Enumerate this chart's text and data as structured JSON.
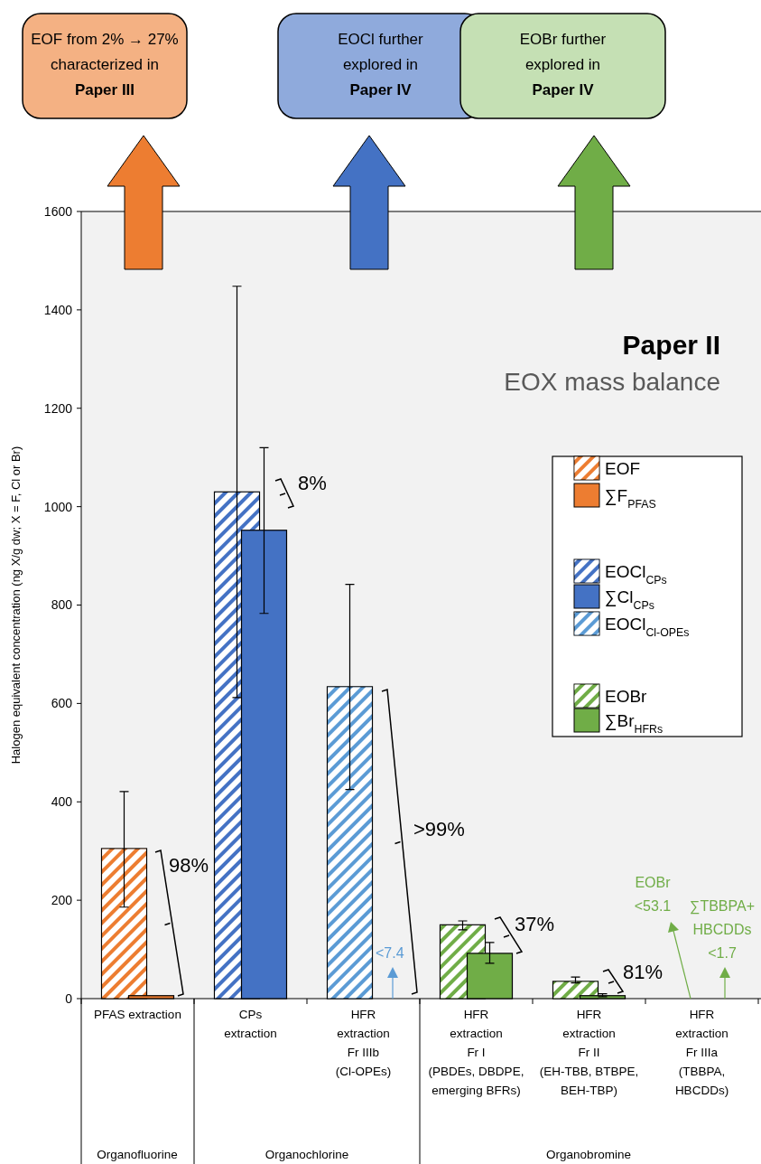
{
  "chart_data": {
    "type": "bar",
    "ylabel": "Halogen equivalent concentration (ng X/g dw; X = F, Cl or Br)",
    "categories": [
      "PFAS extraction",
      "CPs\nextraction",
      "HFR\nextraction\nFr IIIb\n(Cl-OPEs)",
      "HFR\nextraction\nFr I\n(PBDEs, DBDPE,\nemerging BFRs)",
      "HFR\nextraction\nFr II\n(EH-TBB, BTBPE,\nBEH-TBP)",
      "HFR\nextraction\nFr IIIa\n(TBBPA,\nHBCDDs)"
    ],
    "series": [
      {
        "name": "EOF",
        "color": "#ed7d31",
        "values": [
          305,
          null,
          null,
          null,
          null,
          null
        ],
        "errors": [
          [
            186,
            421
          ],
          null,
          null,
          null,
          null,
          null
        ]
      },
      {
        "name": "∑F$_{PFAS}$",
        "color": "#ed7d31",
        "values": [
          6,
          null,
          null,
          null,
          null,
          null
        ]
      },
      {
        "name": "EOCl$_{CPs}$",
        "color": "#4472c4",
        "values": [
          null,
          1030,
          null,
          null,
          null,
          null
        ],
        "errors": [
          null,
          [
            612,
            1448
          ],
          null,
          null,
          null,
          null
        ]
      },
      {
        "name": "∑Cl$_{CPs}$",
        "color": "#4472c4",
        "values": [
          null,
          952,
          null,
          null,
          null,
          null
        ],
        "errors": [
          null,
          [
            783,
            1120
          ],
          null,
          null,
          null,
          null
        ]
      },
      {
        "name": "EOCl$_{Cl-OPEs}$",
        "color": "#5b9bd5",
        "values": [
          null,
          null,
          634,
          null,
          null,
          null
        ],
        "errors": [
          null,
          null,
          [
            425,
            842
          ],
          null,
          null,
          null
        ]
      },
      {
        "name": "EOBr",
        "color": "#70ad47",
        "values": [
          null,
          null,
          null,
          150,
          35,
          null
        ],
        "errors": [
          null,
          null,
          null,
          [
            140,
            158
          ],
          [
            32,
            44
          ],
          null
        ]
      },
      {
        "name": "∑Br$_{HFRs}$",
        "color": "#70ad47",
        "values": [
          null,
          null,
          null,
          92,
          6,
          null
        ],
        "errors": [
          null,
          null,
          null,
          [
            72,
            114
          ],
          [
            4,
            10
          ],
          null
        ]
      }
    ],
    "ylim": [
      0,
      1600
    ],
    "yticks": [
      0,
      200,
      400,
      600,
      800,
      1000,
      1200,
      1400,
      1600
    ],
    "grid": false,
    "legend": "right",
    "annotations": [
      "EOF from 2% → 27%\ncharacterized in\nPaper III",
      "EOCl further\nexplored in\nPaper IV",
      "EOBr further\nexplored in\nPaper IV",
      "Paper II",
      "EOX mass balance",
      "98%",
      "8%",
      ">99%",
      "37%",
      "81%",
      "<7.4",
      "EOBr\n<53.1",
      "∑TBBPA+\nHBCDDs\n<1.7",
      "Organofluorine",
      "Organochlorine",
      "Organobromine"
    ]
  }
}
